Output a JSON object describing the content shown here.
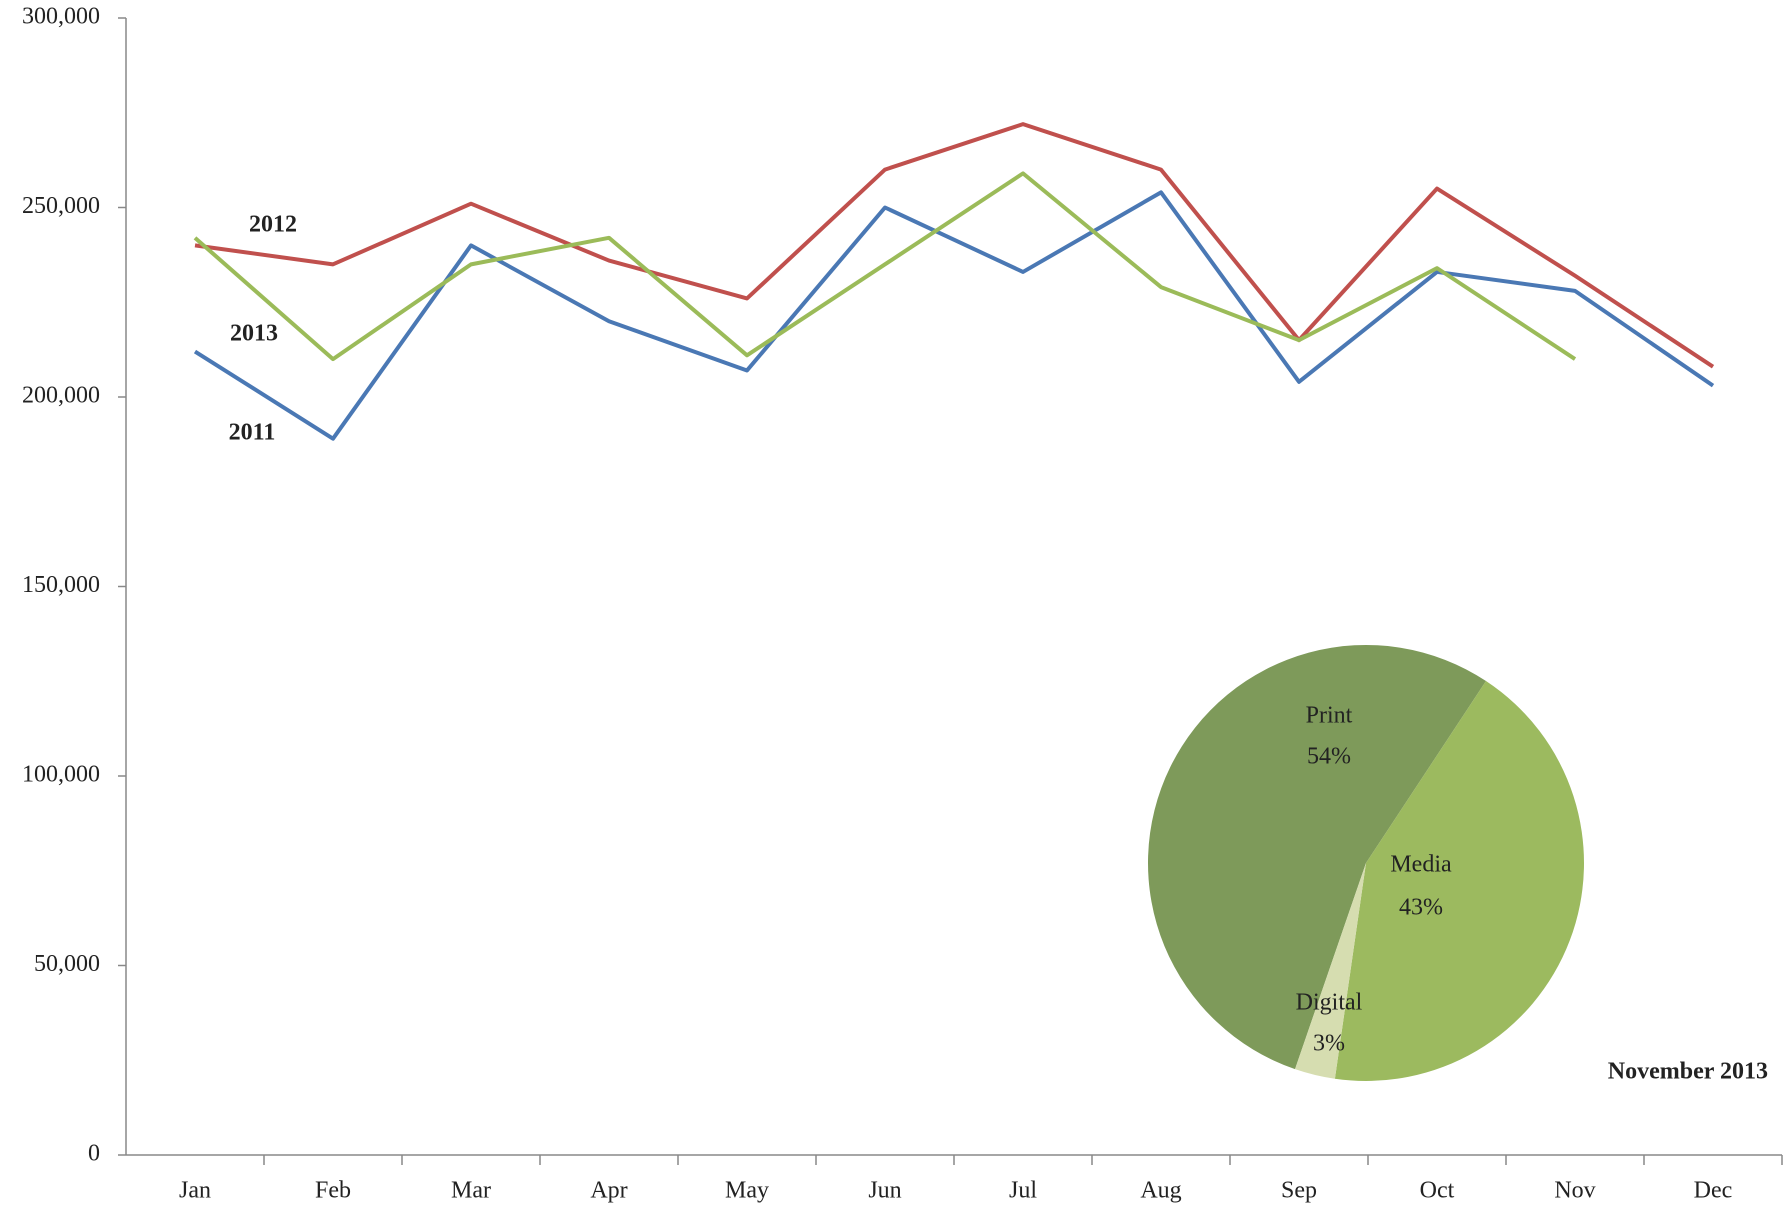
{
  "chart_data": [
    {
      "type": "line",
      "categories": [
        "Jan",
        "Feb",
        "Mar",
        "Apr",
        "May",
        "Jun",
        "Jul",
        "Aug",
        "Sep",
        "Oct",
        "Nov",
        "Dec"
      ],
      "series": [
        {
          "name": "2011",
          "color": "#4a78b4",
          "values": [
            212000,
            189000,
            240000,
            220000,
            207000,
            250000,
            233000,
            254000,
            204000,
            233000,
            228000,
            203000
          ]
        },
        {
          "name": "2012",
          "color": "#c0504d",
          "values": [
            240000,
            235000,
            251000,
            236000,
            226000,
            260000,
            272000,
            260000,
            215000,
            255000,
            232000,
            208000
          ]
        },
        {
          "name": "2013",
          "color": "#9bbb59",
          "values": [
            242000,
            210000,
            235000,
            242000,
            211000,
            235000,
            259000,
            229000,
            215000,
            234000,
            210000,
            null
          ]
        }
      ],
      "ylim": [
        0,
        300000
      ],
      "yticks": [
        0,
        {
          "value": 50000,
          "label": "50,000"
        },
        {
          "value": 100000,
          "label": "100,000"
        },
        {
          "value": 150000,
          "label": "150,000"
        },
        {
          "value": 200000,
          "label": "200,000"
        },
        {
          "value": 250000,
          "label": "250,000"
        },
        {
          "value": 300000,
          "label": "300,000"
        }
      ],
      "grid": false
    },
    {
      "type": "pie",
      "title": "November 2013",
      "categories": [
        "Print",
        "Media",
        "Digital"
      ],
      "values": [
        54,
        43,
        3
      ],
      "value_labels": [
        "54%",
        "43%",
        "3%"
      ],
      "colors": [
        "#7e9a5a",
        "#9cba5f",
        "#d6ddb0"
      ]
    }
  ]
}
